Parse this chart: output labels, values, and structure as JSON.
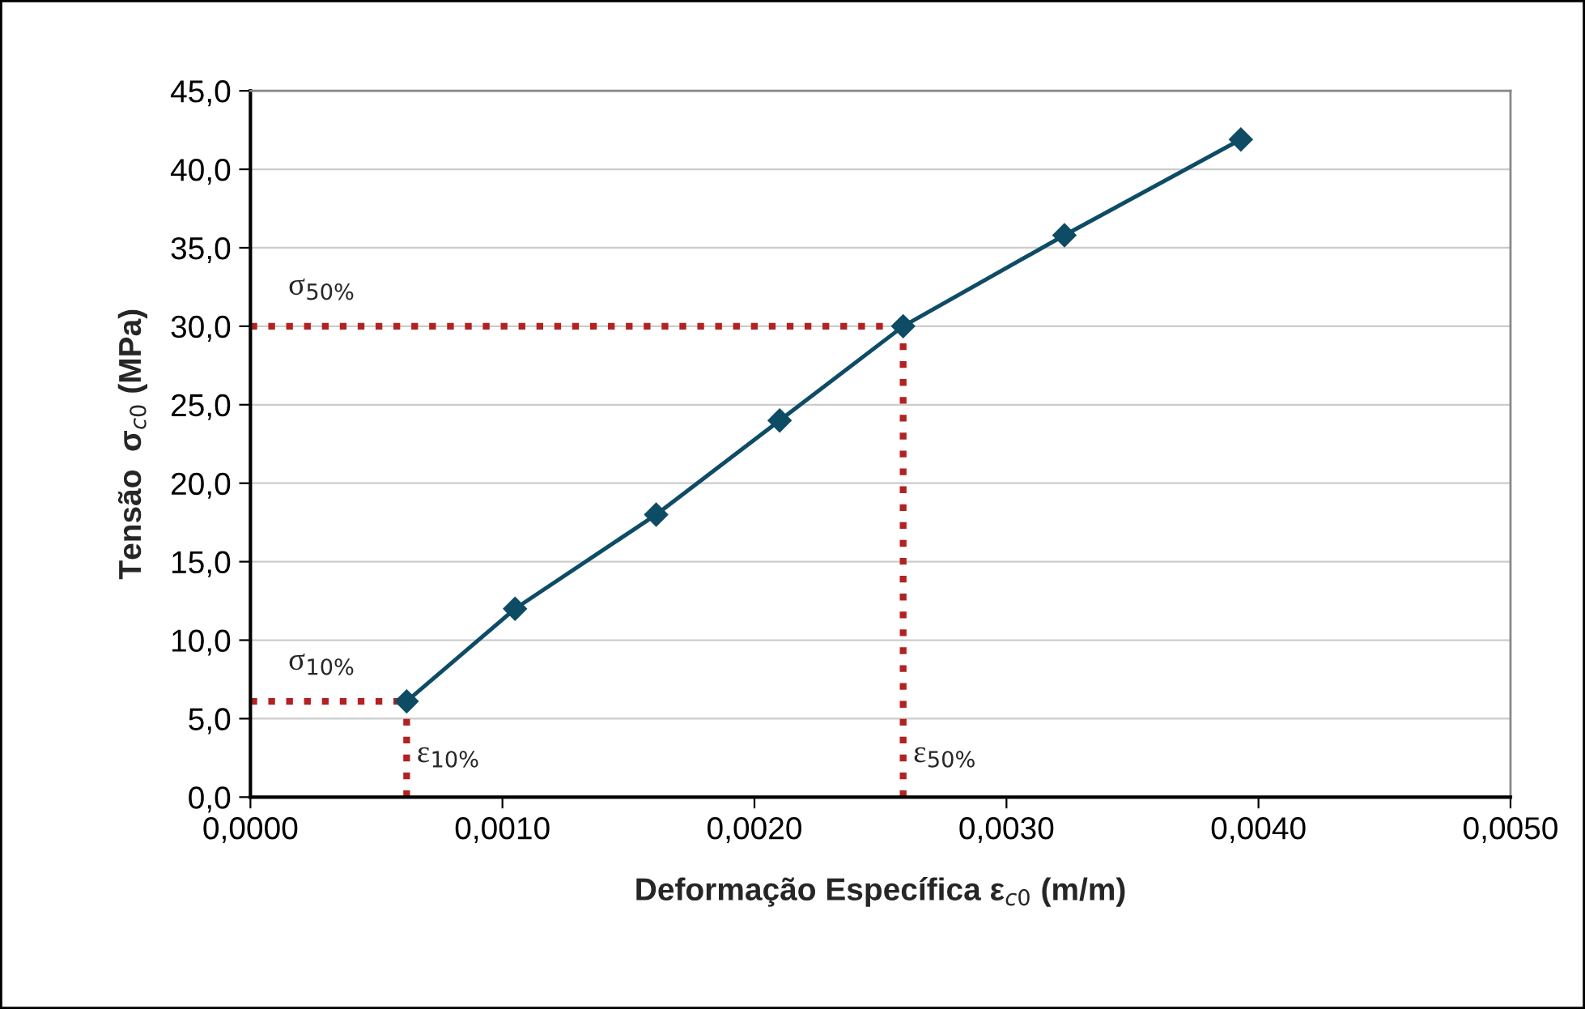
{
  "chart_data": {
    "type": "line",
    "xlabel": "Deformação Específica ε$_{c0}$ (m/m)",
    "ylabel": "Tensão  σ$_{c0}$ (MPa)",
    "x": [
      0.00062,
      0.00105,
      0.00161,
      0.0021,
      0.00259,
      0.00323,
      0.00393
    ],
    "series": [
      {
        "color": "#0e4c66",
        "values": [
          6.1,
          12.0,
          18.0,
          24.0,
          30.0,
          35.8,
          41.9
        ]
      }
    ],
    "marker": "diamond",
    "line_style": "solid",
    "xlim": [
      0,
      0.005
    ],
    "xticks": [
      {
        "value": 0,
        "label": "0,0000"
      },
      {
        "value": 0.001,
        "label": "0,0010"
      },
      {
        "value": 0.002,
        "label": "0,0020"
      },
      {
        "value": 0.003,
        "label": "0,0030"
      },
      {
        "value": 0.004,
        "label": "0,0040"
      },
      {
        "value": 0.005,
        "label": "0,0050"
      }
    ],
    "ylim": [
      0,
      45
    ],
    "yticks": [
      {
        "value": 0,
        "label": "0,0"
      },
      {
        "value": 5,
        "label": "5,0"
      },
      {
        "value": 10,
        "label": "10,0"
      },
      {
        "value": 15,
        "label": "15,0"
      },
      {
        "value": 20,
        "label": "20,0"
      },
      {
        "value": 25,
        "label": "25,0"
      },
      {
        "value": 30,
        "label": "30,0"
      },
      {
        "value": 35,
        "label": "35,0"
      },
      {
        "value": 40,
        "label": "40,0"
      },
      {
        "value": 45,
        "label": "45,0"
      }
    ],
    "grid": "y",
    "ref_lines": [
      {
        "axis": "y",
        "value": 6.1,
        "label": "σ$_{10%}$",
        "color": "#b22222",
        "line_style": "dotted"
      },
      {
        "axis": "y",
        "value": 30.0,
        "label": "σ$_{50%}$",
        "color": "#b22222",
        "line_style": "dotted"
      },
      {
        "axis": "x",
        "value": 0.00062,
        "label": "ε$_{10%}$",
        "color": "#b22222",
        "line_style": "dotted"
      },
      {
        "axis": "x",
        "value": 0.00259,
        "label": "ε$_{50%}$",
        "color": "#b22222",
        "line_style": "dotted"
      }
    ]
  }
}
